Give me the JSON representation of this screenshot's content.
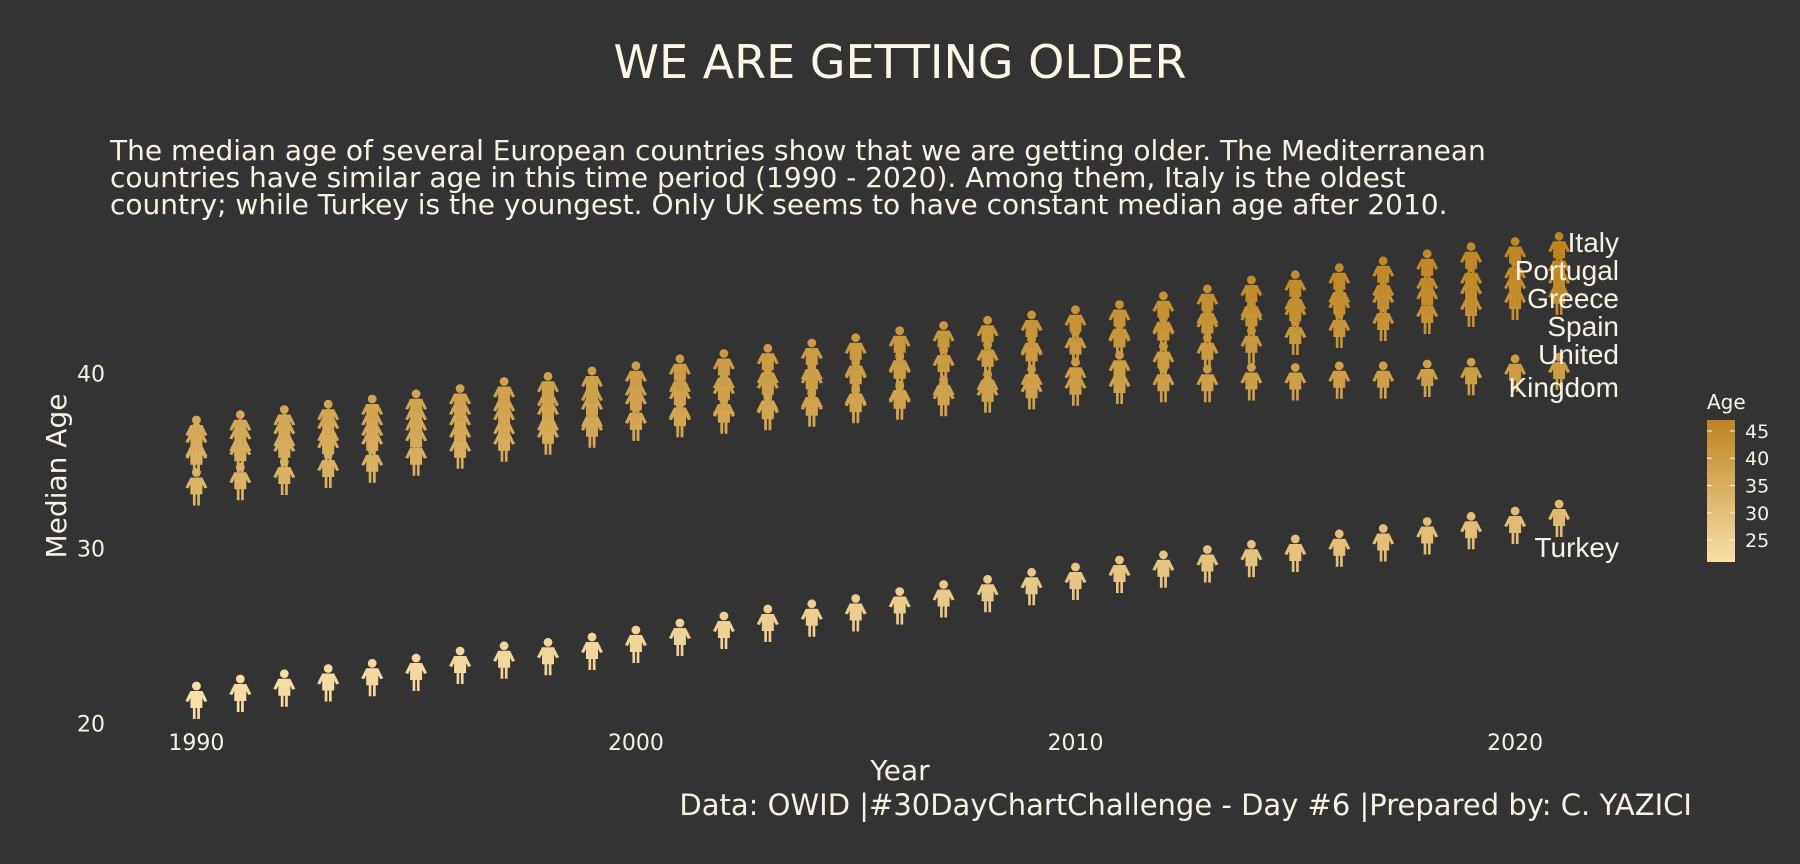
{
  "chart_data": {
    "type": "scatter",
    "title": "WE ARE GETTING OLDER",
    "subtitle_lines": [
      "The median age of several European countries show that we are getting older. The Mediterranean",
      "countries have similar age in this time period (1990 - 2020). Among them, Italy is the oldest",
      "country; while Turkey is the youngest. Only UK seems to have constant median age after 2010."
    ],
    "caption": "Data: OWID |#30DayChartChallenge - Day #6 |Prepared by: C. YAZICI",
    "xlabel": "Year",
    "ylabel": "Median Age",
    "xlim": [
      1988.9,
      2022.5
    ],
    "ylim": [
      19.5,
      48.3
    ],
    "x_ticks": [
      1990,
      2000,
      2010,
      2020
    ],
    "y_ticks": [
      20,
      30,
      40
    ],
    "marker": "person-icon",
    "color_scale": {
      "title": "Age",
      "ticks": [
        25,
        30,
        35,
        40,
        45
      ],
      "domain": [
        21,
        47
      ],
      "low_color": "#f7dfa8",
      "high_color": "#bd8421"
    },
    "x": [
      1990,
      1991,
      1992,
      1993,
      1994,
      1995,
      1996,
      1997,
      1998,
      1999,
      2000,
      2001,
      2002,
      2003,
      2004,
      2005,
      2006,
      2007,
      2008,
      2009,
      2010,
      2011,
      2012,
      2013,
      2014,
      2015,
      2016,
      2017,
      2018,
      2019,
      2020,
      2021
    ],
    "series": [
      {
        "name": "Italy",
        "label": "Italy",
        "values": [
          36.3,
          36.6,
          36.9,
          37.2,
          37.5,
          37.8,
          38.1,
          38.5,
          38.8,
          39.1,
          39.4,
          39.8,
          40.1,
          40.4,
          40.7,
          41.0,
          41.4,
          41.7,
          42.0,
          42.3,
          42.6,
          42.9,
          43.4,
          43.8,
          44.3,
          44.6,
          45.0,
          45.4,
          45.8,
          46.2,
          46.5,
          46.8
        ]
      },
      {
        "name": "Portugal",
        "label": "Portugal",
        "values": [
          35.1,
          35.4,
          35.7,
          36.0,
          36.3,
          36.6,
          36.9,
          37.2,
          37.5,
          37.8,
          38.1,
          38.4,
          38.7,
          39.0,
          39.3,
          39.6,
          39.9,
          40.3,
          40.6,
          40.9,
          41.3,
          41.8,
          42.2,
          42.7,
          43.1,
          43.5,
          43.9,
          44.3,
          44.7,
          45.0,
          45.3,
          45.7
        ]
      },
      {
        "name": "Greece",
        "label": "Greece",
        "values": [
          35.9,
          36.1,
          36.4,
          36.7,
          36.9,
          37.2,
          37.5,
          37.7,
          38.0,
          38.3,
          38.6,
          38.8,
          39.0,
          39.3,
          39.5,
          39.7,
          40.0,
          40.3,
          40.6,
          41.0,
          41.3,
          41.7,
          42.1,
          42.5,
          42.9,
          43.2,
          43.6,
          43.9,
          44.1,
          44.4,
          44.7,
          45.0
        ]
      },
      {
        "name": "Spain",
        "label": "Spain",
        "values": [
          33.3,
          33.6,
          33.9,
          34.3,
          34.6,
          35.0,
          35.4,
          35.8,
          36.2,
          36.6,
          37.0,
          37.3,
          37.5,
          37.7,
          37.9,
          38.1,
          38.3,
          38.6,
          38.9,
          39.2,
          39.6,
          40.0,
          40.5,
          41.0,
          41.4,
          41.9,
          42.3,
          42.7,
          43.1,
          43.5,
          43.9,
          44.2
        ]
      },
      {
        "name": "United Kingdom",
        "label_lines": [
          "United",
          "Kingdom"
        ],
        "values": [
          35.0,
          35.2,
          35.4,
          35.6,
          35.8,
          36.0,
          36.2,
          36.4,
          36.6,
          36.8,
          37.0,
          37.2,
          37.4,
          37.6,
          37.8,
          38.0,
          38.2,
          38.4,
          38.6,
          38.8,
          39.0,
          39.1,
          39.2,
          39.2,
          39.3,
          39.3,
          39.4,
          39.4,
          39.5,
          39.6,
          39.8,
          39.9
        ]
      },
      {
        "name": "Turkey",
        "label": "Turkey",
        "values": [
          21.1,
          21.5,
          21.8,
          22.1,
          22.4,
          22.7,
          23.1,
          23.4,
          23.6,
          23.9,
          24.3,
          24.7,
          25.1,
          25.5,
          25.8,
          26.1,
          26.5,
          26.9,
          27.2,
          27.6,
          27.9,
          28.3,
          28.6,
          28.9,
          29.2,
          29.5,
          29.8,
          30.1,
          30.5,
          30.8,
          31.1,
          31.5
        ]
      }
    ]
  }
}
